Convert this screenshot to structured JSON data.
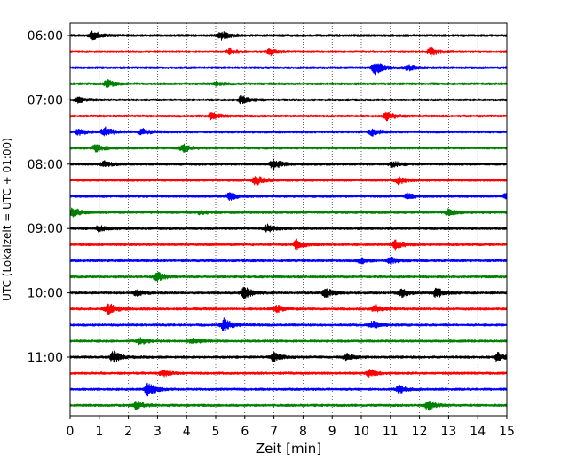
{
  "chart_data": {
    "type": "line",
    "title": "",
    "xlabel": "Zeit  [min]",
    "ylabel": "UTC (Lokalzeit = UTC + 01:00)",
    "xlim": [
      0,
      15
    ],
    "x_ticks": [
      0,
      1,
      2,
      3,
      4,
      5,
      6,
      7,
      8,
      9,
      10,
      11,
      12,
      13,
      14,
      15
    ],
    "x_tick_labels": [
      "0",
      "1",
      "2",
      "3",
      "4",
      "5",
      "6",
      "7",
      "8",
      "9",
      "10",
      "11",
      "12",
      "13",
      "14",
      "15"
    ],
    "y_ticks": [
      "06:00",
      "07:00",
      "08:00",
      "09:00",
      "10:00",
      "11:00"
    ],
    "grid": "vertical dotted",
    "trace_interval_min": 15,
    "colors": [
      "#000000",
      "#ff0000",
      "#0000ff",
      "#008000"
    ],
    "traces": [
      {
        "start": "06:00",
        "color": "#000000",
        "events": [
          [
            0.8,
            0.5
          ],
          [
            5.2,
            0.45
          ]
        ]
      },
      {
        "start": "06:15",
        "color": "#ff0000",
        "events": [
          [
            5.5,
            0.3
          ],
          [
            6.9,
            0.35
          ],
          [
            12.4,
            0.45
          ]
        ]
      },
      {
        "start": "06:30",
        "color": "#0000ff",
        "events": [
          [
            10.5,
            0.7
          ],
          [
            11.6,
            0.35
          ]
        ]
      },
      {
        "start": "06:45",
        "color": "#008000",
        "events": [
          [
            1.3,
            0.4
          ],
          [
            5.0,
            0.2
          ]
        ]
      },
      {
        "start": "07:00",
        "color": "#000000",
        "events": [
          [
            0.3,
            0.3
          ],
          [
            5.9,
            0.45
          ]
        ]
      },
      {
        "start": "07:15",
        "color": "#ff0000",
        "events": [
          [
            4.9,
            0.4
          ],
          [
            10.9,
            0.45
          ]
        ]
      },
      {
        "start": "07:30",
        "color": "#0000ff",
        "events": [
          [
            0.3,
            0.3
          ],
          [
            1.2,
            0.5
          ],
          [
            2.5,
            0.35
          ],
          [
            10.4,
            0.35
          ]
        ]
      },
      {
        "start": "07:45",
        "color": "#008000",
        "events": [
          [
            0.9,
            0.4
          ],
          [
            3.9,
            0.5
          ]
        ]
      },
      {
        "start": "08:00",
        "color": "#000000",
        "events": [
          [
            1.2,
            0.3
          ],
          [
            7.0,
            0.55
          ],
          [
            11.1,
            0.3
          ]
        ]
      },
      {
        "start": "08:15",
        "color": "#ff0000",
        "events": [
          [
            6.4,
            0.55
          ],
          [
            11.3,
            0.4
          ]
        ]
      },
      {
        "start": "08:30",
        "color": "#0000ff",
        "events": [
          [
            5.5,
            0.4
          ],
          [
            11.6,
            0.3
          ],
          [
            15.0,
            0.4
          ]
        ]
      },
      {
        "start": "08:45",
        "color": "#008000",
        "events": [
          [
            0.1,
            0.5
          ],
          [
            4.5,
            0.2
          ],
          [
            13.0,
            0.35
          ]
        ]
      },
      {
        "start": "09:00",
        "color": "#000000",
        "events": [
          [
            1.0,
            0.3
          ],
          [
            6.8,
            0.45
          ]
        ]
      },
      {
        "start": "09:15",
        "color": "#ff0000",
        "events": [
          [
            7.8,
            0.5
          ],
          [
            11.2,
            0.55
          ]
        ]
      },
      {
        "start": "09:30",
        "color": "#0000ff",
        "events": [
          [
            10.0,
            0.3
          ],
          [
            11.0,
            0.35
          ]
        ]
      },
      {
        "start": "09:45",
        "color": "#008000",
        "events": [
          [
            3.0,
            0.5
          ]
        ]
      },
      {
        "start": "10:00",
        "color": "#000000",
        "events": [
          [
            2.3,
            0.35
          ],
          [
            6.0,
            0.65
          ],
          [
            8.8,
            0.5
          ],
          [
            11.4,
            0.5
          ],
          [
            12.6,
            0.5
          ]
        ]
      },
      {
        "start": "10:15",
        "color": "#ff0000",
        "events": [
          [
            1.3,
            0.7
          ],
          [
            7.1,
            0.4
          ],
          [
            10.5,
            0.4
          ]
        ]
      },
      {
        "start": "10:30",
        "color": "#0000ff",
        "events": [
          [
            5.3,
            0.75
          ],
          [
            10.4,
            0.4
          ]
        ]
      },
      {
        "start": "10:45",
        "color": "#008000",
        "events": [
          [
            2.4,
            0.4
          ],
          [
            4.2,
            0.3
          ]
        ]
      },
      {
        "start": "11:00",
        "color": "#000000",
        "events": [
          [
            1.5,
            0.6
          ],
          [
            7.0,
            0.5
          ],
          [
            9.5,
            0.35
          ],
          [
            14.7,
            0.45
          ]
        ]
      },
      {
        "start": "11:15",
        "color": "#ff0000",
        "events": [
          [
            3.2,
            0.35
          ],
          [
            10.3,
            0.4
          ]
        ]
      },
      {
        "start": "11:30",
        "color": "#0000ff",
        "events": [
          [
            2.7,
            0.75
          ],
          [
            11.3,
            0.45
          ]
        ]
      },
      {
        "start": "11:45",
        "color": "#008000",
        "events": [
          [
            2.3,
            0.45
          ],
          [
            12.3,
            0.5
          ]
        ]
      }
    ]
  }
}
